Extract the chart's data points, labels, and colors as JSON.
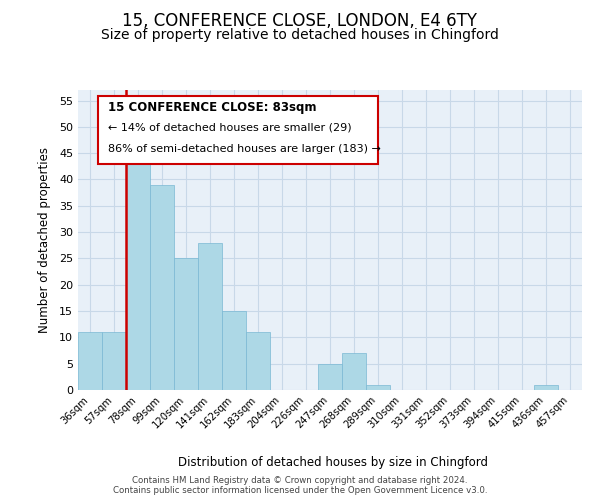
{
  "title": "15, CONFERENCE CLOSE, LONDON, E4 6TY",
  "subtitle": "Size of property relative to detached houses in Chingford",
  "xlabel": "Distribution of detached houses by size in Chingford",
  "ylabel": "Number of detached properties",
  "footer_line1": "Contains HM Land Registry data © Crown copyright and database right 2024.",
  "footer_line2": "Contains public sector information licensed under the Open Government Licence v3.0.",
  "bin_labels": [
    "36sqm",
    "57sqm",
    "78sqm",
    "99sqm",
    "120sqm",
    "141sqm",
    "162sqm",
    "183sqm",
    "204sqm",
    "226sqm",
    "247sqm",
    "268sqm",
    "289sqm",
    "310sqm",
    "331sqm",
    "352sqm",
    "373sqm",
    "394sqm",
    "415sqm",
    "436sqm",
    "457sqm"
  ],
  "bar_heights": [
    11,
    11,
    45,
    39,
    25,
    28,
    15,
    11,
    0,
    0,
    5,
    7,
    1,
    0,
    0,
    0,
    0,
    0,
    0,
    1,
    0
  ],
  "highlight_bin_index": 2,
  "bar_color": "#add8e6",
  "bar_edge_color": "#7ab8d4",
  "highlight_line_color": "#cc0000",
  "ylim": [
    0,
    57
  ],
  "yticks": [
    0,
    5,
    10,
    15,
    20,
    25,
    30,
    35,
    40,
    45,
    50,
    55
  ],
  "annotation_title": "15 CONFERENCE CLOSE: 83sqm",
  "annotation_line1": "← 14% of detached houses are smaller (29)",
  "annotation_line2": "86% of semi-detached houses are larger (183) →",
  "grid_color": "#c8d8e8",
  "background_color": "#ffffff",
  "title_fontsize": 12,
  "subtitle_fontsize": 10,
  "axis_bg_color": "#e8f0f8"
}
